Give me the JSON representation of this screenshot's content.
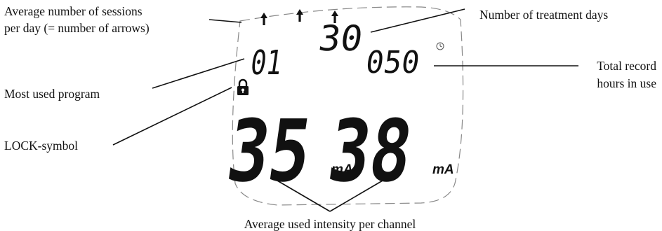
{
  "callouts": {
    "sessions_line1": "Average number of sessions",
    "sessions_line2": "per day (= number of arrows)",
    "treatment_days": "Number of treatment days",
    "most_used_program": "Most used program",
    "total_hours_line1": "Total record",
    "total_hours_line2": "hours in use",
    "lock_symbol": "LOCK-symbol",
    "avg_intensity": "Average used intensity per channel"
  },
  "display": {
    "arrow_count": 3,
    "treatment_days_value": "30",
    "program_value": "01",
    "hours_value": "050",
    "channel1_value": "35",
    "channel2_value": "38",
    "unit": "mA",
    "lock_icon": "padlock-icon",
    "arrow_icon": "up-arrow-icon",
    "clock_icon": "clock-icon"
  }
}
